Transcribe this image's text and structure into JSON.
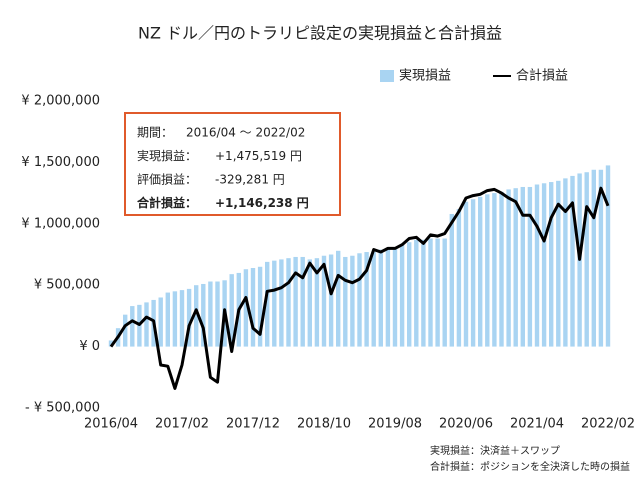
{
  "chart_data": {
    "type": "bar_line",
    "title": "NZ ドル／円のトラリピ設定の実現損益と合計損益",
    "categories": [
      "2016/04",
      null,
      null,
      null,
      null,
      null,
      null,
      null,
      null,
      null,
      "2017/02",
      null,
      null,
      null,
      null,
      null,
      null,
      null,
      null,
      null,
      "2017/12",
      null,
      null,
      null,
      null,
      null,
      null,
      null,
      null,
      null,
      "2018/10",
      null,
      null,
      null,
      null,
      null,
      null,
      null,
      null,
      null,
      "2019/08",
      null,
      null,
      null,
      null,
      null,
      null,
      null,
      null,
      null,
      "2020/06",
      null,
      null,
      null,
      null,
      null,
      null,
      null,
      null,
      null,
      "2021/04",
      null,
      null,
      null,
      null,
      null,
      null,
      null,
      null,
      null,
      "2022/02"
    ],
    "series": [
      {
        "name": "実現損益",
        "type": "bar",
        "color": "#a9d4f2",
        "values": [
          50000,
          150000,
          260000,
          330000,
          340000,
          360000,
          380000,
          400000,
          440000,
          450000,
          460000,
          470000,
          500000,
          510000,
          530000,
          530000,
          540000,
          590000,
          600000,
          630000,
          640000,
          650000,
          690000,
          700000,
          710000,
          720000,
          730000,
          730000,
          710000,
          720000,
          740000,
          750000,
          780000,
          730000,
          740000,
          760000,
          770000,
          770000,
          790000,
          790000,
          810000,
          830000,
          850000,
          870000,
          870000,
          880000,
          880000,
          880000,
          1080000,
          1120000,
          1180000,
          1200000,
          1220000,
          1240000,
          1250000,
          1260000,
          1280000,
          1290000,
          1300000,
          1300000,
          1320000,
          1330000,
          1340000,
          1350000,
          1370000,
          1390000,
          1410000,
          1420000,
          1440000,
          1440000,
          1475519
        ]
      },
      {
        "name": "合計損益",
        "type": "line",
        "color": "#000000",
        "values": [
          0,
          80000,
          170000,
          210000,
          180000,
          240000,
          210000,
          -150000,
          -160000,
          -340000,
          -150000,
          170000,
          300000,
          150000,
          -250000,
          -290000,
          300000,
          -40000,
          300000,
          400000,
          150000,
          100000,
          450000,
          460000,
          480000,
          520000,
          600000,
          560000,
          680000,
          600000,
          670000,
          430000,
          580000,
          540000,
          520000,
          550000,
          620000,
          790000,
          770000,
          800000,
          800000,
          830000,
          880000,
          890000,
          840000,
          910000,
          900000,
          920000,
          1010000,
          1100000,
          1210000,
          1230000,
          1240000,
          1270000,
          1280000,
          1250000,
          1210000,
          1180000,
          1070000,
          1070000,
          980000,
          860000,
          1050000,
          1160000,
          1100000,
          1170000,
          710000,
          1140000,
          1050000,
          1290000,
          1146238
        ]
      }
    ],
    "ylim": [
      -500000,
      2000000
    ],
    "yticks": [
      {
        "value": 2000000,
        "label": "¥ 2,000,000"
      },
      {
        "value": 1500000,
        "label": "¥ 1,500,000"
      },
      {
        "value": 1000000,
        "label": "¥ 1,000,000"
      },
      {
        "value": 500000,
        "label": "¥ 500,000"
      },
      {
        "value": 0,
        "label": "¥ 0"
      },
      {
        "value": -500000,
        "label": "- ¥ 500,000"
      }
    ],
    "negative_tick_color": "#c00000",
    "grid": false,
    "legend": "top-right",
    "annotation_box": {
      "rows": [
        {
          "label": "期間：",
          "text": "2016/04 ～ 2022/02"
        },
        {
          "label": "実現損益：",
          "text": "+1,475,519 円"
        },
        {
          "label": "評価損益：",
          "text": "-329,281 円"
        },
        {
          "label": "合計損益：",
          "text": "+1,146,238 円"
        }
      ],
      "border_color": "#e05a2b",
      "highlight_color": "#e8502a"
    },
    "notes": [
      "実現損益：決済益＋スワップ",
      "合計損益：ポジションを全決済した時の損益"
    ]
  }
}
